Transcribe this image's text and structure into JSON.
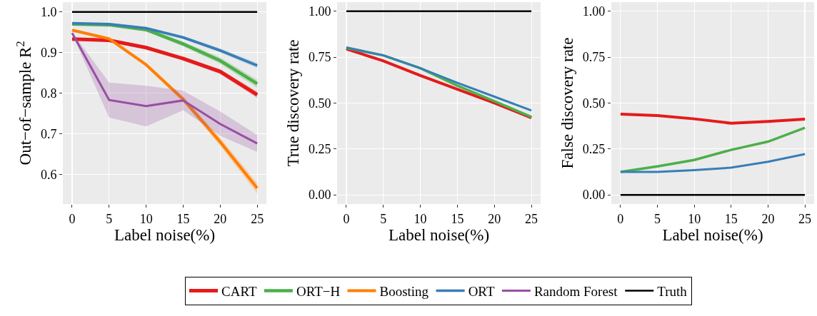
{
  "chart_data": [
    {
      "type": "line",
      "xlabel": "Label noise(%)",
      "ylabel": "Out−of−sample R$^{2}$",
      "x": [
        0,
        5,
        10,
        15,
        20,
        25
      ],
      "xlim": [
        -1.25,
        26.25
      ],
      "xticks": [
        0,
        5,
        10,
        15,
        20,
        25
      ],
      "ylim": [
        0.527,
        1.024
      ],
      "yticks": [
        0.6,
        0.7,
        0.8,
        0.9,
        {
          "value": 1,
          "label": "1.0"
        }
      ],
      "grid": true,
      "legend": "bottom",
      "series": [
        {
          "name": "CART",
          "color": "#e41a1c",
          "values": [
            0.933,
            0.93,
            0.912,
            0.885,
            0.853,
            0.796
          ],
          "lower": [
            0.93,
            0.926,
            0.908,
            0.88,
            0.847,
            0.788
          ],
          "upper": [
            0.936,
            0.934,
            0.916,
            0.89,
            0.859,
            0.804
          ]
        },
        {
          "name": "ORT−H",
          "color": "#4daf4a",
          "values": [
            0.97,
            0.968,
            0.956,
            0.921,
            0.88,
            0.823
          ],
          "lower": [
            0.968,
            0.965,
            0.952,
            0.915,
            0.872,
            0.813
          ],
          "upper": [
            0.972,
            0.971,
            0.96,
            0.927,
            0.888,
            0.833
          ]
        },
        {
          "name": "Boosting",
          "color": "#ff7f00",
          "values": [
            0.955,
            0.934,
            0.87,
            0.785,
            0.68,
            0.566
          ],
          "lower": [
            0.952,
            0.93,
            0.865,
            0.778,
            0.67,
            0.553
          ],
          "upper": [
            0.958,
            0.938,
            0.875,
            0.792,
            0.69,
            0.579
          ]
        },
        {
          "name": "ORT",
          "color": "#377eb8",
          "values": [
            0.972,
            0.97,
            0.96,
            0.937,
            0.905,
            0.868
          ],
          "lower": [
            0.97,
            0.967,
            0.957,
            0.933,
            0.9,
            0.862
          ],
          "upper": [
            0.974,
            0.973,
            0.963,
            0.941,
            0.91,
            0.874
          ]
        },
        {
          "name": "Random Forest",
          "color": "#984ea3",
          "values": [
            0.948,
            0.783,
            0.768,
            0.782,
            0.724,
            0.676
          ],
          "lower": [
            0.946,
            0.74,
            0.718,
            0.758,
            0.695,
            0.655
          ],
          "upper": [
            0.95,
            0.826,
            0.818,
            0.806,
            0.755,
            0.697
          ]
        },
        {
          "name": "Truth",
          "color": "#000000",
          "values": [
            1.0,
            1.0,
            1.0,
            1.0,
            1.0,
            1.0
          ]
        }
      ]
    },
    {
      "type": "line",
      "xlabel": "Label noise(%)",
      "ylabel": "True discovery rate",
      "x": [
        0,
        5,
        10,
        15,
        20,
        25
      ],
      "xlim": [
        -1.25,
        26.25
      ],
      "xticks": [
        0,
        5,
        10,
        15,
        20,
        25
      ],
      "ylim": [
        -0.05,
        1.05
      ],
      "yticks": [
        {
          "value": 0,
          "label": "0.00"
        },
        {
          "value": 0.25,
          "label": "0.25"
        },
        {
          "value": 0.5,
          "label": "0.50"
        },
        {
          "value": 0.75,
          "label": "0.75"
        },
        {
          "value": 1,
          "label": "1.00"
        }
      ],
      "grid": true,
      "series": [
        {
          "name": "CART",
          "color": "#e41a1c",
          "values": [
            0.795,
            0.73,
            0.65,
            0.575,
            0.5,
            0.42
          ]
        },
        {
          "name": "ORT−H",
          "color": "#4daf4a",
          "values": [
            0.8,
            0.76,
            0.69,
            0.595,
            0.51,
            0.425
          ]
        },
        {
          "name": "ORT",
          "color": "#377eb8",
          "values": [
            0.803,
            0.76,
            0.69,
            0.61,
            0.535,
            0.46
          ]
        },
        {
          "name": "Truth",
          "color": "#000000",
          "values": [
            1.0,
            1.0,
            1.0,
            1.0,
            1.0,
            1.0
          ]
        }
      ]
    },
    {
      "type": "line",
      "xlabel": "Label noise(%)",
      "ylabel": "False discovery rate",
      "x": [
        0,
        5,
        10,
        15,
        20,
        25
      ],
      "xlim": [
        -1.25,
        26.25
      ],
      "xticks": [
        0,
        5,
        10,
        15,
        20,
        25
      ],
      "ylim": [
        -0.05,
        1.05
      ],
      "yticks": [
        {
          "value": 0,
          "label": "0.00"
        },
        {
          "value": 0.25,
          "label": "0.25"
        },
        {
          "value": 0.5,
          "label": "0.50"
        },
        {
          "value": 0.75,
          "label": "0.75"
        },
        {
          "value": 1,
          "label": "1.00"
        }
      ],
      "grid": true,
      "series": [
        {
          "name": "CART",
          "color": "#e41a1c",
          "values": [
            0.44,
            0.432,
            0.414,
            0.39,
            0.4,
            0.413
          ]
        },
        {
          "name": "ORT−H",
          "color": "#4daf4a",
          "values": [
            0.125,
            0.155,
            0.19,
            0.245,
            0.29,
            0.365
          ]
        },
        {
          "name": "ORT",
          "color": "#377eb8",
          "values": [
            0.125,
            0.125,
            0.135,
            0.148,
            0.18,
            0.222
          ]
        },
        {
          "name": "Truth",
          "color": "#000000",
          "values": [
            0,
            0,
            0,
            0,
            0,
            0
          ]
        }
      ]
    }
  ]
}
